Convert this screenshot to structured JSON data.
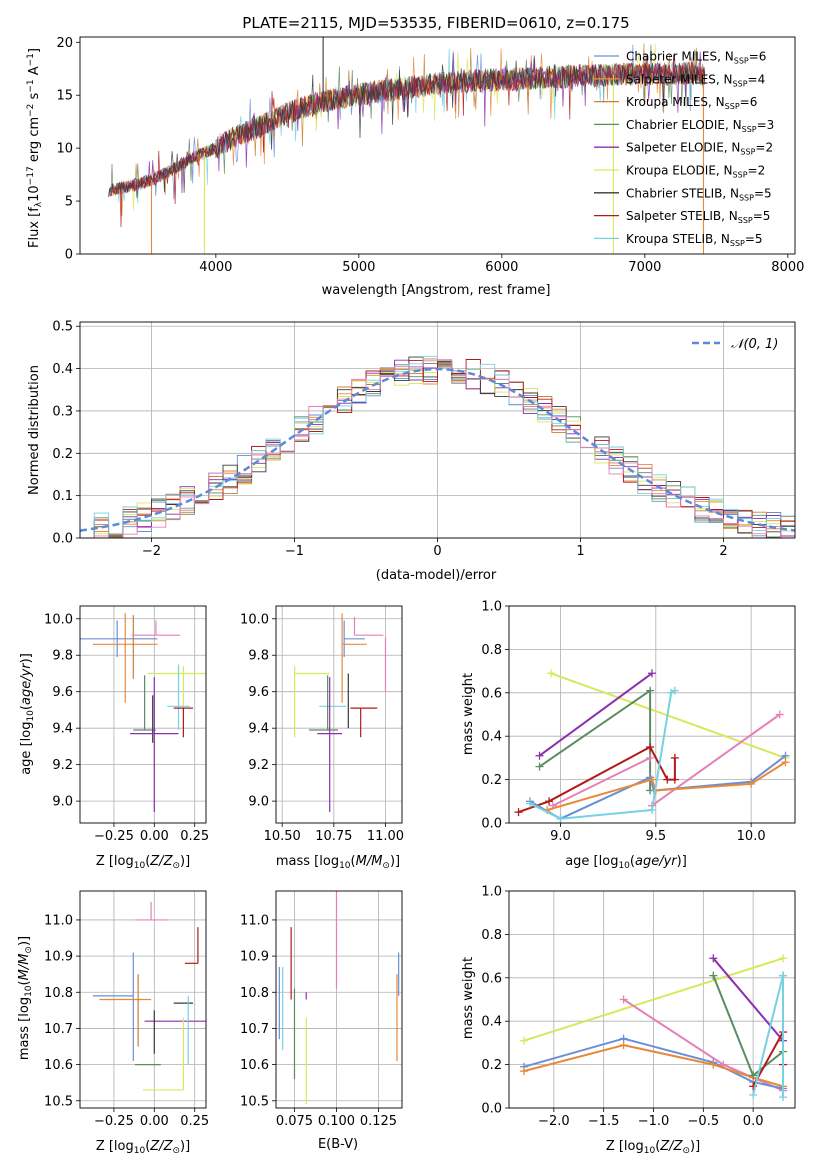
{
  "chart_data": [
    {
      "id": "spectrum",
      "type": "line",
      "title": "PLATE=2115, MJD=53535, FIBERID=0610, z=0.175",
      "xlabel": "wavelength [Angstrom, rest frame]",
      "ylabel": "Flux [f_λ 10^-17 erg cm^-2 s^-1 A^-1]",
      "xlim": [
        3050,
        8050
      ],
      "ylim": [
        0,
        20.5
      ],
      "xticks": [
        4000,
        5000,
        6000,
        7000,
        8000
      ],
      "yticks": [
        0,
        5,
        10,
        15,
        20
      ],
      "grid": false,
      "legend_position": "right",
      "series": [
        {
          "name": "Chabrier MILES, N_SSP=6",
          "color": "#6a8fd6"
        },
        {
          "name": "Salpeter MILES, N_SSP=4",
          "color": "#e8893a"
        },
        {
          "name": "Kroupa MILES, N_SSP=6",
          "color": "#c8813a"
        },
        {
          "name": "Chabrier ELODIE, N_SSP=3",
          "color": "#5b8c62"
        },
        {
          "name": "Salpeter ELODIE, N_SSP=2",
          "color": "#8b2fae"
        },
        {
          "name": "Kroupa ELODIE, N_SSP=2",
          "color": "#d9e75a"
        },
        {
          "name": "Chabrier STELIB, N_SSP=5",
          "color": "#3a3a3a"
        },
        {
          "name": "Salpeter STELIB, N_SSP=5",
          "color": "#b21a1a"
        },
        {
          "name": "Kroupa STELIB, N_SSP=5",
          "color": "#76d1e0"
        }
      ],
      "envelope": {
        "x": [
          3250,
          3400,
          3550,
          3700,
          3850,
          4000,
          4150,
          4300,
          4500,
          4700,
          4900,
          5100,
          5300,
          5500,
          5700,
          5900,
          6100,
          6300,
          6500,
          6700,
          6900,
          7100,
          7300,
          7420
        ],
        "y": [
          6.0,
          6.4,
          7.0,
          8.0,
          9.2,
          10.0,
          11.2,
          12.0,
          13.3,
          14.2,
          14.8,
          15.3,
          15.6,
          16.0,
          16.3,
          16.4,
          16.5,
          16.7,
          16.8,
          16.9,
          17.0,
          17.0,
          17.1,
          17.0
        ]
      }
    },
    {
      "id": "residuals",
      "type": "line",
      "xlabel": "(data-model)/error",
      "ylabel": "Normed distribution",
      "xlim": [
        -2.5,
        2.5
      ],
      "ylim": [
        0,
        0.51
      ],
      "xticks": [
        -2,
        -1,
        0,
        1,
        2
      ],
      "yticks": [
        0.0,
        0.1,
        0.2,
        0.3,
        0.4,
        0.5
      ],
      "grid": true,
      "legend_label": "𝒩(0, 1)",
      "legend_position": "top-right",
      "normal_color": "#5b8ad8"
    },
    {
      "id": "age-vs-Z",
      "type": "scatter",
      "xlabel": "Z [log10(Z/Z⊙)]",
      "ylabel": "age [log10(age/yr)]",
      "xlim": [
        -0.46,
        0.32
      ],
      "ylim": [
        8.88,
        10.07
      ],
      "xticks": [
        -0.25,
        0.0,
        0.25
      ],
      "yticks": [
        9.0,
        9.2,
        9.4,
        9.6,
        9.8,
        10.0
      ],
      "points": [
        {
          "x": -0.23,
          "y": 9.89,
          "xerr": 0.25,
          "yerr": [
            0.1,
            0.1
          ],
          "color": "#6a8fd6"
        },
        {
          "x": -0.18,
          "y": 9.86,
          "xerr": 0.2,
          "yerr": [
            0.32,
            0.17
          ],
          "color": "#e8893a"
        },
        {
          "x": -0.13,
          "y": 9.87,
          "xerr": 0.0,
          "yerr": [
            0.2,
            0.15
          ],
          "color": "#c8813a"
        },
        {
          "x": 0.18,
          "y": 9.7,
          "xerr": 0.22,
          "yerr": [
            0.35,
            0.04
          ],
          "color": "#d9e75a"
        },
        {
          "x": 0.01,
          "y": 9.91,
          "xerr": 0.15,
          "yerr": [
            0.0,
            0.08
          ],
          "color": "#e67fb8"
        },
        {
          "x": -0.06,
          "y": 9.39,
          "xerr": 0.07,
          "yerr": [
            0.0,
            0.3
          ],
          "color": "#5b8c62"
        },
        {
          "x": -0.01,
          "y": 9.38,
          "xerr": 0.0,
          "yerr": [
            0.06,
            0.2
          ],
          "color": "#3a3a3a"
        },
        {
          "x": 0.15,
          "y": 9.52,
          "xerr": 0.07,
          "yerr": [
            0.13,
            0.23
          ],
          "color": "#76d1e0"
        },
        {
          "x": 0.18,
          "y": 9.51,
          "xerr": 0.06,
          "yerr": [
            0.16,
            0.0
          ],
          "color": "#b21a1a"
        },
        {
          "x": 0.0,
          "y": 9.37,
          "xerr": 0.15,
          "yerr": [
            0.43,
            0.31
          ],
          "color": "#8b2fae"
        }
      ]
    },
    {
      "id": "age-vs-mass",
      "type": "scatter",
      "xlabel": "mass [log10(M/M⊙)]",
      "ylabel": "",
      "xlim": [
        10.47,
        11.08
      ],
      "ylim": [
        8.88,
        10.07
      ],
      "xticks": [
        10.5,
        10.75,
        11.0
      ],
      "yticks": [
        9.0,
        9.2,
        9.4,
        9.6,
        9.8,
        10.0
      ],
      "points": [
        {
          "x": 10.8,
          "y": 9.89,
          "xerr": [
            0.0,
            0.1
          ],
          "yerr": [
            0.1,
            0.1
          ],
          "color": "#6a8fd6"
        },
        {
          "x": 10.79,
          "y": 9.86,
          "xerr": [
            0.0,
            0.12
          ],
          "yerr": [
            0.32,
            0.17
          ],
          "color": "#e8893a"
        },
        {
          "x": 10.85,
          "y": 9.91,
          "xerr": [
            0.0,
            0.14
          ],
          "yerr": [
            0.0,
            0.1
          ],
          "color": "#e67fb8"
        },
        {
          "x": 11.0,
          "y": 9.9,
          "xerr": 0.0,
          "yerr": [
            0.3,
            0.0
          ],
          "color": "#e67fb8"
        },
        {
          "x": 10.56,
          "y": 9.7,
          "xerr": [
            0.0,
            0.17
          ],
          "yerr": [
            0.35,
            0.04
          ],
          "color": "#d9e75a"
        },
        {
          "x": 10.73,
          "y": 9.52,
          "xerr": [
            0.05,
            0.08
          ],
          "yerr": [
            0.0,
            0.0
          ],
          "color": "#76d1e0"
        },
        {
          "x": 10.88,
          "y": 9.51,
          "xerr": [
            0.05,
            0.08
          ],
          "yerr": [
            0.16,
            0.0
          ],
          "color": "#b21a1a"
        },
        {
          "x": 10.72,
          "y": 9.39,
          "xerr": [
            0.09,
            0.05
          ],
          "yerr": [
            0.0,
            0.3
          ],
          "color": "#5b8c62"
        },
        {
          "x": 10.73,
          "y": 9.37,
          "xerr": [
            0.06,
            0.06
          ],
          "yerr": [
            0.43,
            0.31
          ],
          "color": "#8b2fae"
        },
        {
          "x": 10.82,
          "y": 9.4,
          "xerr": 0.0,
          "yerr": [
            0.0,
            0.3
          ],
          "color": "#3a3a3a"
        }
      ]
    },
    {
      "id": "massweight-vs-age",
      "type": "line",
      "xlabel": "age [log10(age/yr)]",
      "ylabel": "mass weight",
      "xlim": [
        8.73,
        10.23
      ],
      "ylim": [
        0.0,
        1.0
      ],
      "xticks": [
        9.0,
        9.5,
        10.0
      ],
      "yticks": [
        0.0,
        0.2,
        0.4,
        0.6,
        0.8,
        1.0
      ],
      "grid": true,
      "series": [
        {
          "color": "#d9e75a",
          "x": [
            8.95,
            10.18
          ],
          "y": [
            0.69,
            0.3
          ]
        },
        {
          "color": "#8b2fae",
          "x": [
            8.89,
            9.48
          ],
          "y": [
            0.31,
            0.69
          ]
        },
        {
          "color": "#5b8c62",
          "x": [
            8.89,
            9.47,
            9.47
          ],
          "y": [
            0.26,
            0.61,
            0.15
          ]
        },
        {
          "color": "#b21a1a",
          "x": [
            8.78,
            8.94,
            9.47,
            9.56,
            9.6,
            9.6
          ],
          "y": [
            0.05,
            0.1,
            0.35,
            0.2,
            0.2,
            0.3
          ]
        },
        {
          "color": "#e67fb8",
          "x": [
            9.48,
            10.15
          ],
          "y": [
            0.08,
            0.5
          ]
        },
        {
          "color": "#e67fb8",
          "x": [
            8.96,
            9.47
          ],
          "y": [
            0.08,
            0.3
          ]
        },
        {
          "color": "#6a8fd6",
          "x": [
            8.84,
            9.0,
            9.47,
            9.49,
            10.0,
            10.18
          ],
          "y": [
            0.1,
            0.02,
            0.21,
            0.15,
            0.19,
            0.31
          ]
        },
        {
          "color": "#e8893a",
          "x": [
            8.93,
            9.48,
            9.5,
            10.0,
            10.18
          ],
          "y": [
            0.06,
            0.2,
            0.15,
            0.18,
            0.28
          ]
        },
        {
          "color": "#76d1e0",
          "x": [
            8.84,
            9.0,
            9.48,
            9.58,
            9.6
          ],
          "y": [
            0.09,
            0.02,
            0.06,
            0.6,
            0.61
          ]
        }
      ]
    },
    {
      "id": "mass-vs-Z",
      "type": "scatter",
      "xlabel": "Z [log10(Z/Z⊙)]",
      "ylabel": "mass [log10(M/M⊙)]",
      "xlim": [
        -0.46,
        0.32
      ],
      "ylim": [
        10.48,
        11.08
      ],
      "xticks": [
        -0.25,
        0.0,
        0.25
      ],
      "yticks": [
        10.5,
        10.6,
        10.7,
        10.8,
        10.9,
        11.0
      ],
      "points": [
        {
          "x": -0.13,
          "y": 10.79,
          "xerr": [
            0.25,
            0.0
          ],
          "yerr": [
            0.18,
            0.12
          ],
          "color": "#6a8fd6"
        },
        {
          "x": -0.18,
          "y": 10.78,
          "xerr": [
            0.16,
            0.16
          ],
          "yerr": [
            0.0,
            0.0
          ],
          "color": "#e8893a"
        },
        {
          "x": -0.1,
          "y": 10.8,
          "xerr": 0.0,
          "yerr": [
            0.15,
            0.05
          ],
          "color": "#c8813a"
        },
        {
          "x": -0.02,
          "y": 11.0,
          "xerr": [
            0.1,
            0.1
          ],
          "yerr": [
            0.0,
            0.05
          ],
          "color": "#e67fb8"
        },
        {
          "x": 0.27,
          "y": 10.88,
          "xerr": [
            0.08,
            0.0
          ],
          "yerr": [
            0.0,
            0.1
          ],
          "color": "#b21a1a"
        },
        {
          "x": 0.18,
          "y": 10.77,
          "xerr": [
            0.06,
            0.06
          ],
          "yerr": [
            0.0,
            0.0
          ],
          "color": "#3a3a3a"
        },
        {
          "x": 0.03,
          "y": 10.72,
          "xerr": [
            0.09,
            0.29
          ],
          "yerr": [
            0.0,
            0.0
          ],
          "color": "#8b2fae"
        },
        {
          "x": -0.06,
          "y": 10.6,
          "xerr": [
            0.06,
            0.1
          ],
          "yerr": [
            0.0,
            0.0
          ],
          "color": "#5b8c62"
        },
        {
          "x": 0.18,
          "y": 10.53,
          "xerr": [
            0.25,
            0.0
          ],
          "yerr": [
            0.0,
            0.2
          ],
          "color": "#d9e75a"
        },
        {
          "x": 0.21,
          "y": 10.79,
          "xerr": 0.0,
          "yerr": [
            0.19,
            0.0
          ],
          "color": "#76d1e0"
        },
        {
          "x": 0.0,
          "y": 10.73,
          "xerr": 0.0,
          "yerr": [
            0.1,
            0.02
          ],
          "color": "#3a3a3a"
        }
      ]
    },
    {
      "id": "mass-vs-EBV",
      "type": "scatter",
      "xlabel": "E(B-V)",
      "ylabel": "",
      "xlim": [
        0.064,
        0.139
      ],
      "ylim": [
        10.48,
        11.08
      ],
      "xticks": [
        0.075,
        0.1,
        0.125
      ],
      "yticks": [
        10.5,
        10.6,
        10.7,
        10.8,
        10.9,
        11.0
      ],
      "points": [
        {
          "x": 0.066,
          "y": 10.77,
          "yerr": [
            0.1,
            0.1
          ],
          "color": "#6a8fd6"
        },
        {
          "x": 0.068,
          "y": 10.73,
          "yerr": [
            0.09,
            0.14
          ],
          "color": "#76d1e0"
        },
        {
          "x": 0.073,
          "y": 10.88,
          "yerr": [
            0.1,
            0.1
          ],
          "color": "#b21a1a"
        },
        {
          "x": 0.075,
          "y": 10.66,
          "yerr": [
            0.1,
            0.15
          ],
          "color": "#5b8c62"
        },
        {
          "x": 0.082,
          "y": 10.78,
          "yerr": [
            0.0,
            0.02
          ],
          "color": "#8b2fae"
        },
        {
          "x": 0.082,
          "y": 10.62,
          "yerr": [
            0.13,
            0.11
          ],
          "color": "#d9e75a"
        },
        {
          "x": 0.1,
          "y": 10.98,
          "yerr": [
            0.17,
            0.17
          ],
          "color": "#e67fb8"
        },
        {
          "x": 0.136,
          "y": 10.73,
          "yerr": [
            0.12,
            0.12
          ],
          "color": "#e8893a"
        },
        {
          "x": 0.137,
          "y": 10.85,
          "yerr": [
            0.06,
            0.06
          ],
          "color": "#6a8fd6"
        }
      ]
    },
    {
      "id": "massweight-vs-Z",
      "type": "line",
      "xlabel": "Z [log10(Z/Z⊙)]",
      "ylabel": "mass weight",
      "xlim": [
        -2.45,
        0.42
      ],
      "ylim": [
        0.0,
        1.0
      ],
      "xticks": [
        -2.0,
        -1.5,
        -1.0,
        -0.5,
        0.0
      ],
      "yticks": [
        0.0,
        0.2,
        0.4,
        0.6,
        0.8,
        1.0
      ],
      "grid": true,
      "series": [
        {
          "color": "#d9e75a",
          "x": [
            -2.3,
            0.3
          ],
          "y": [
            0.31,
            0.69
          ]
        },
        {
          "color": "#e67fb8",
          "x": [
            -1.3,
            -0.3,
            0.3
          ],
          "y": [
            0.5,
            0.2,
            0.08
          ]
        },
        {
          "color": "#6a8fd6",
          "x": [
            -2.3,
            -1.3,
            -0.4,
            0.0,
            0.3
          ],
          "y": [
            0.19,
            0.32,
            0.21,
            0.12,
            0.09
          ]
        },
        {
          "color": "#e8893a",
          "x": [
            -2.3,
            -1.3,
            -0.4,
            0.0,
            0.3
          ],
          "y": [
            0.17,
            0.29,
            0.2,
            0.14,
            0.1
          ]
        },
        {
          "color": "#8b2fae",
          "x": [
            -0.4,
            0.3
          ],
          "y": [
            0.69,
            0.31
          ]
        },
        {
          "color": "#5b8c62",
          "x": [
            -0.4,
            0.0,
            0.3,
            0.3
          ],
          "y": [
            0.61,
            0.15,
            0.26,
            0.61
          ]
        },
        {
          "color": "#b21a1a",
          "x": [
            0.0,
            0.3,
            0.3
          ],
          "y": [
            0.1,
            0.35,
            0.2
          ]
        },
        {
          "color": "#76d1e0",
          "x": [
            0.0,
            0.3,
            0.3
          ],
          "y": [
            0.06,
            0.61,
            0.05
          ]
        }
      ]
    }
  ]
}
